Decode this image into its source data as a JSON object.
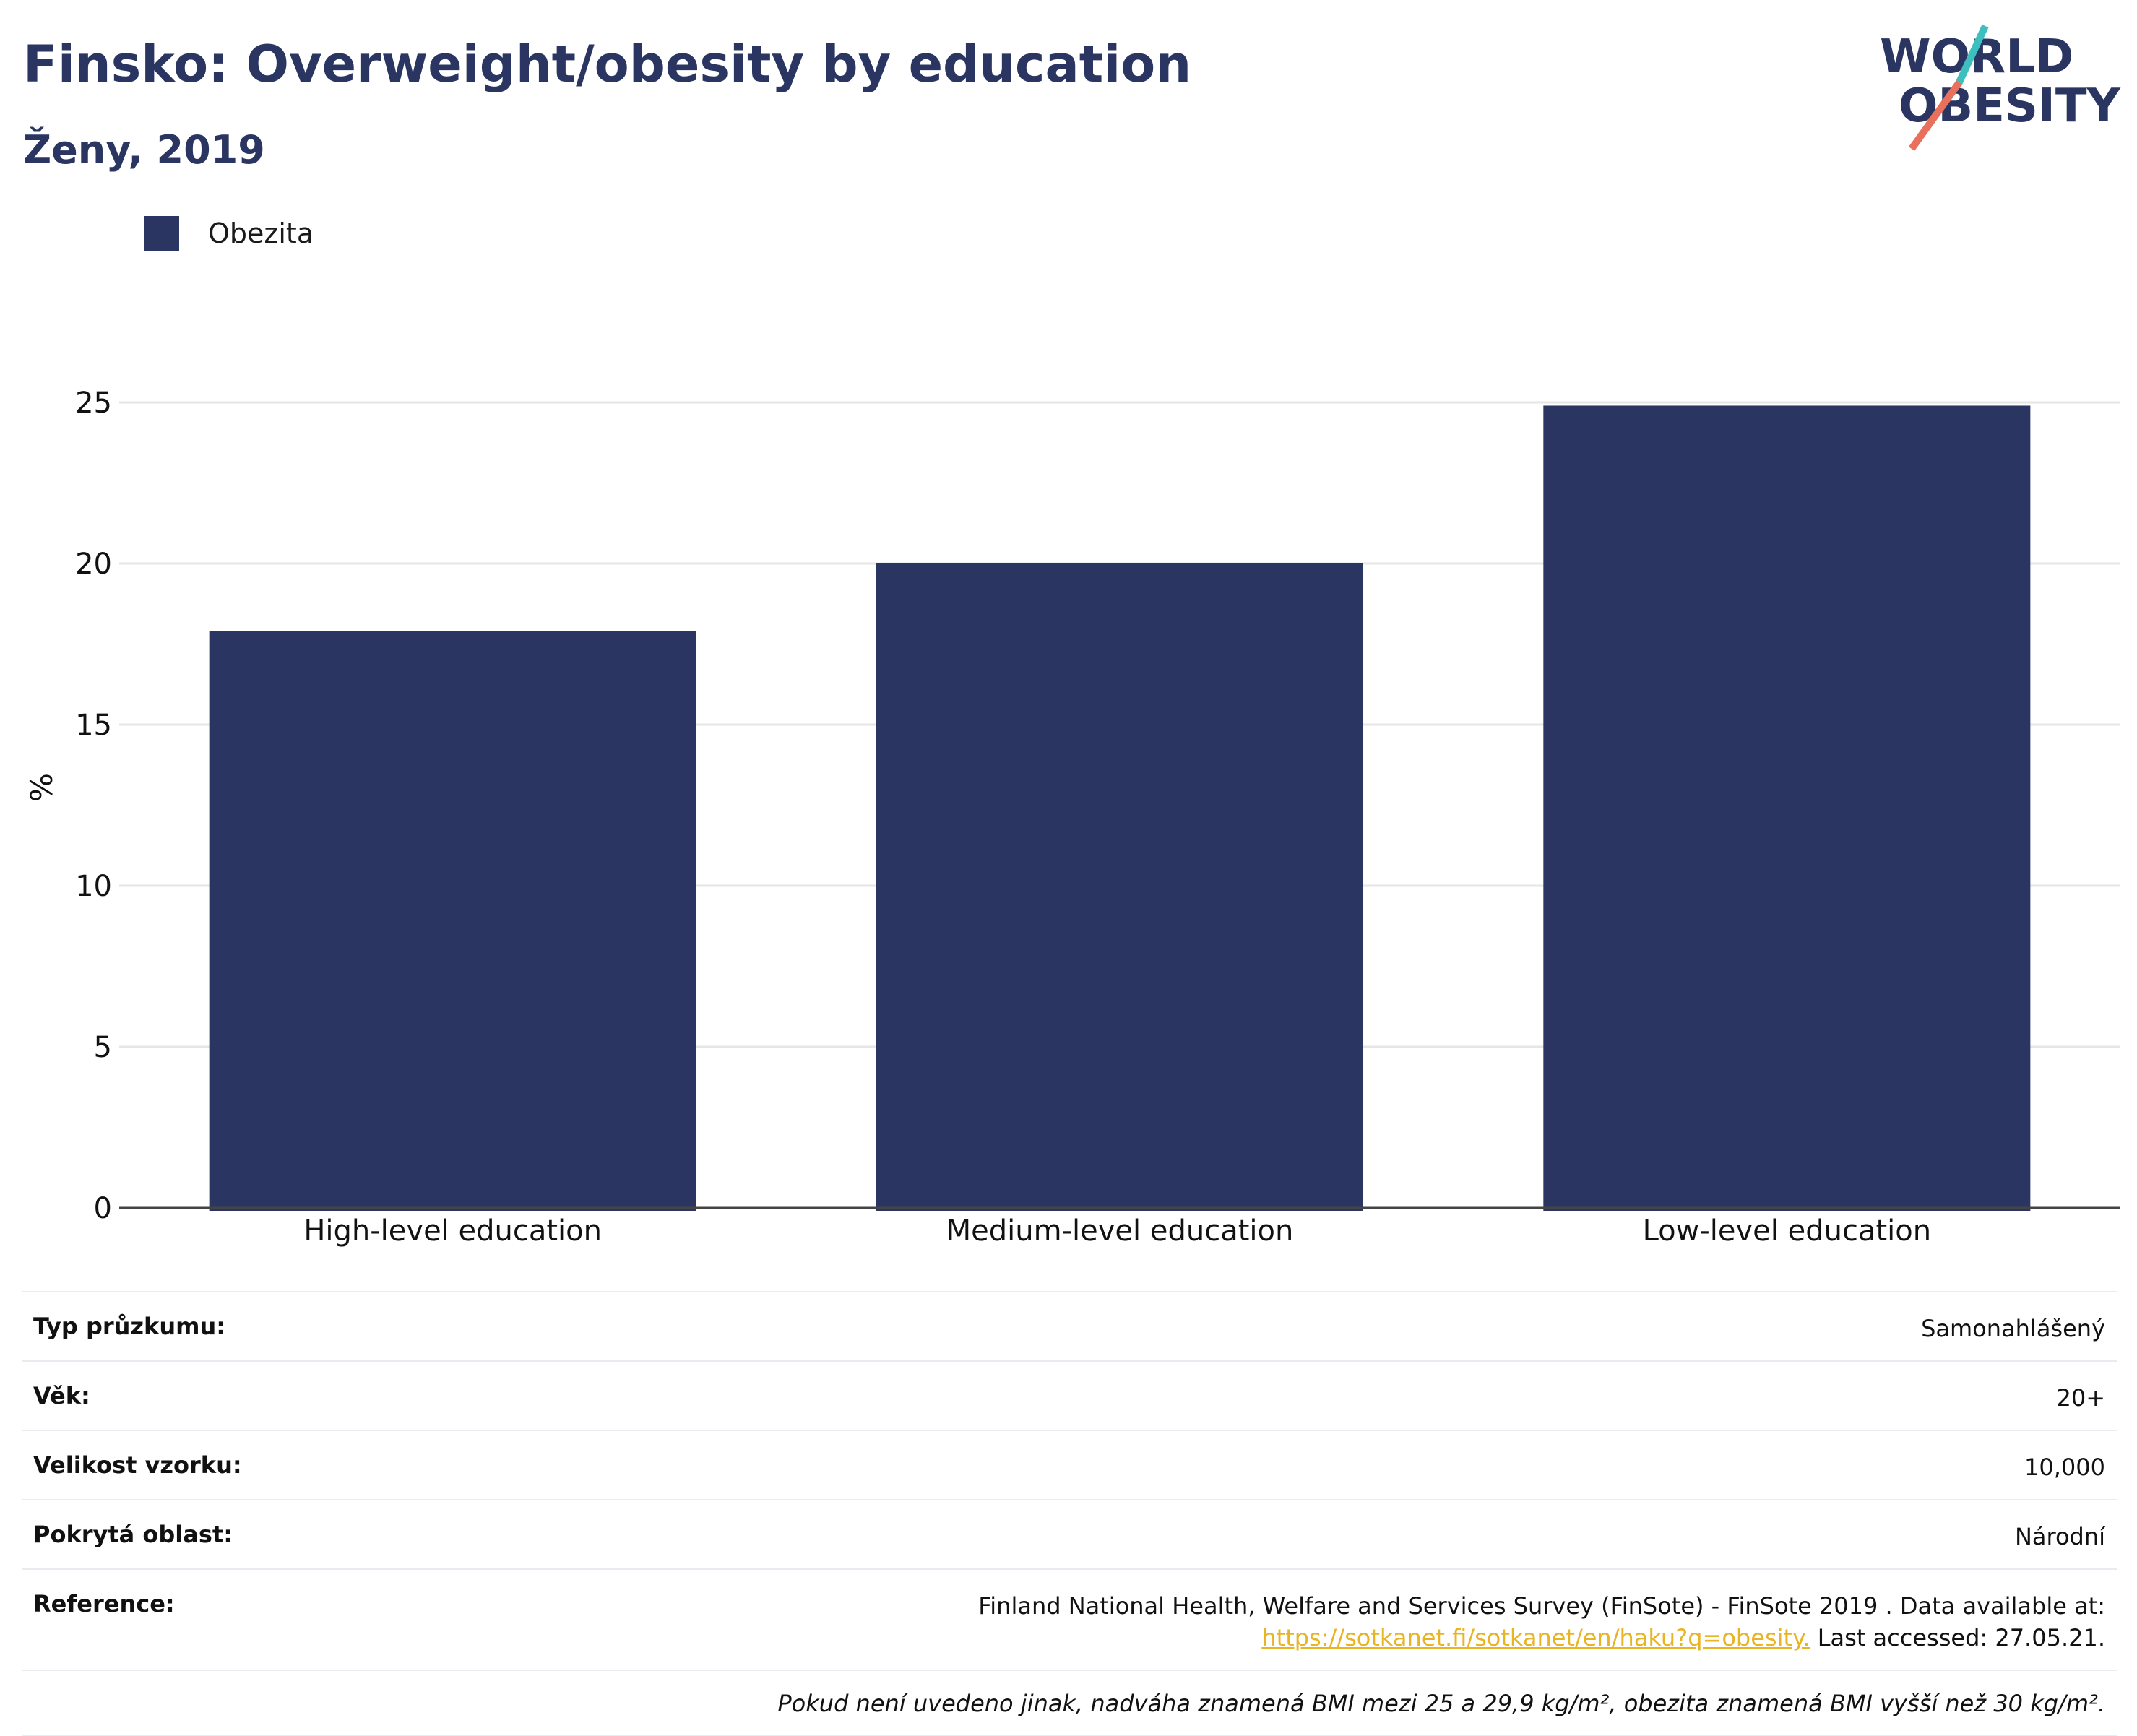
{
  "header": {
    "title": "Finsko: Overweight/obesity by education",
    "subtitle": "Ženy, 2019"
  },
  "logo": {
    "line1": "WORLD",
    "line2": "OBESITY",
    "accent_teal": "#3ebfbf",
    "accent_coral": "#e8705c"
  },
  "legend": {
    "label": "Obezita",
    "color": "#2a3661"
  },
  "chart_data": {
    "type": "bar",
    "categories": [
      "High-level education",
      "Medium-level education",
      "Low-level education"
    ],
    "series": [
      {
        "name": "Obezita",
        "values": [
          17.9,
          20.0,
          24.9
        ],
        "color": "#2a3661"
      }
    ],
    "title": "Finsko: Overweight/obesity by education",
    "subtitle": "Ženy, 2019",
    "xlabel": "",
    "ylabel": "%",
    "ylim": [
      0,
      25
    ],
    "yticks": [
      "0",
      "5",
      "10",
      "15",
      "20",
      "25"
    ],
    "grid": true,
    "legend_position": "top-left"
  },
  "info": {
    "rows": [
      {
        "key": "Typ průzkumu:",
        "value": "Samonahlášený"
      },
      {
        "key": "Věk:",
        "value": "20+"
      },
      {
        "key": "Velikost vzorku:",
        "value": "10,000"
      },
      {
        "key": "Pokrytá oblast:",
        "value": "Národní"
      }
    ],
    "reference": {
      "key": "Reference:",
      "text_line1": "Finland National Health, Welfare and Services Survey (FinSote) - FinSote 2019 . Data available at:",
      "link": "https://sotkanet.fi/sotkanet/en/haku?q=obesity.",
      "text_after": "Last accessed: 27.05.21."
    },
    "note": "Pokud není uvedeno jinak, nadváha znamená BMI mezi 25 a 29,9 kg/m², obezita znamená BMI vyšší než 30 kg/m²."
  }
}
